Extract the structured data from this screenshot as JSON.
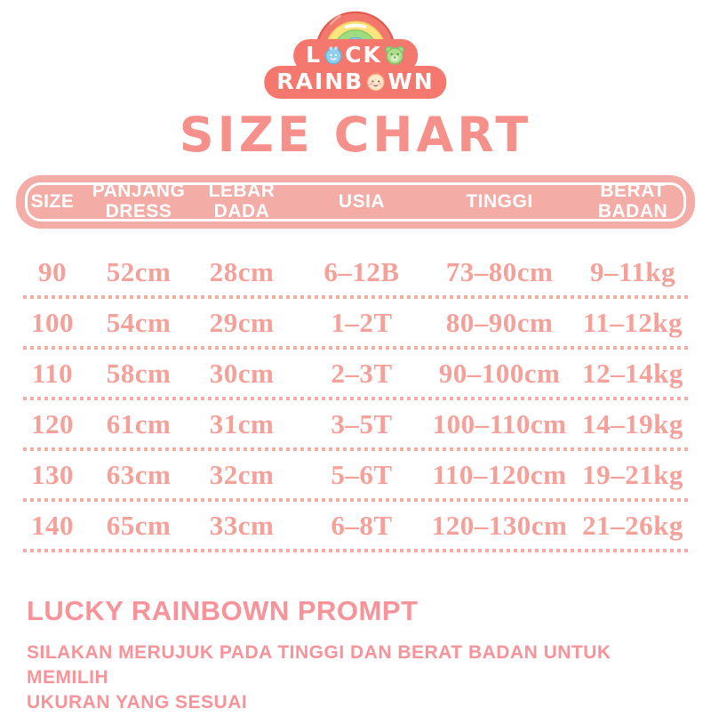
{
  "logo": {
    "line1": {
      "part1": "L",
      "part2": "CK"
    },
    "line2": {
      "part1": "RAINB",
      "part2": "WN"
    },
    "icons": [
      "bib-icon",
      "teddy-bear-icon",
      "baby-face-icon",
      "rainbow-icon"
    ],
    "colors": {
      "blob": "#f4786e",
      "rainbow_outer": "#f2776d",
      "rainbow_yellow": "#fbe47e",
      "rainbow_green": "#9fdc80",
      "rainbow_blue": "#87cef0"
    }
  },
  "title": "SIZE CHART",
  "table": {
    "headers": [
      "SIZE",
      "PANJANG\nDRESS",
      "LEBAR\nDADA",
      "USIA",
      "TINGGI",
      "BERAT\nBADAN"
    ],
    "rows": [
      [
        "90",
        "52cm",
        "28cm",
        "6–12B",
        "73–80cm",
        "9–11kg"
      ],
      [
        "100",
        "54cm",
        "29cm",
        "1–2T",
        "80–90cm",
        "11–12kg"
      ],
      [
        "110",
        "58cm",
        "30cm",
        "2–3T",
        "90–100cm",
        "12–14kg"
      ],
      [
        "120",
        "61cm",
        "31cm",
        "3–5T",
        "100–110cm",
        "14–19kg"
      ],
      [
        "130",
        "63cm",
        "32cm",
        "5–6T",
        "110–120cm",
        "19–21kg"
      ],
      [
        "140",
        "65cm",
        "33cm",
        "6–8T",
        "120–130cm",
        "21–26kg"
      ]
    ]
  },
  "footer": {
    "heading": "LUCKY RAINBOWN PROMPT",
    "note": "SILAKAN MERUJUK PADA TINGGI DAN BERAT BADAN UNTUK MEMILIH\nUKURAN YANG SESUAI"
  },
  "colors": {
    "title_text": "#f5908a",
    "header_bar": "#f4aca6",
    "header_text": "#ffffff",
    "row_text": "#f5a099",
    "divider": "#f4aca6",
    "footer_text": "#f8939a",
    "background": "#ffffff"
  },
  "chart_data": {
    "type": "table",
    "title": "SIZE CHART",
    "columns": [
      "SIZE",
      "PANJANG DRESS",
      "LEBAR DADA",
      "USIA",
      "TINGGI",
      "BERAT BADAN"
    ],
    "rows": [
      [
        "90",
        "52cm",
        "28cm",
        "6–12B",
        "73–80cm",
        "9–11kg"
      ],
      [
        "100",
        "54cm",
        "29cm",
        "1–2T",
        "80–90cm",
        "11–12kg"
      ],
      [
        "110",
        "58cm",
        "30cm",
        "2–3T",
        "90–100cm",
        "12–14kg"
      ],
      [
        "120",
        "61cm",
        "31cm",
        "3–5T",
        "100–110cm",
        "14–19kg"
      ],
      [
        "130",
        "63cm",
        "32cm",
        "5–6T",
        "110–120cm",
        "19–21kg"
      ],
      [
        "140",
        "65cm",
        "33cm",
        "6–8T",
        "120–130cm",
        "21–26kg"
      ]
    ]
  }
}
